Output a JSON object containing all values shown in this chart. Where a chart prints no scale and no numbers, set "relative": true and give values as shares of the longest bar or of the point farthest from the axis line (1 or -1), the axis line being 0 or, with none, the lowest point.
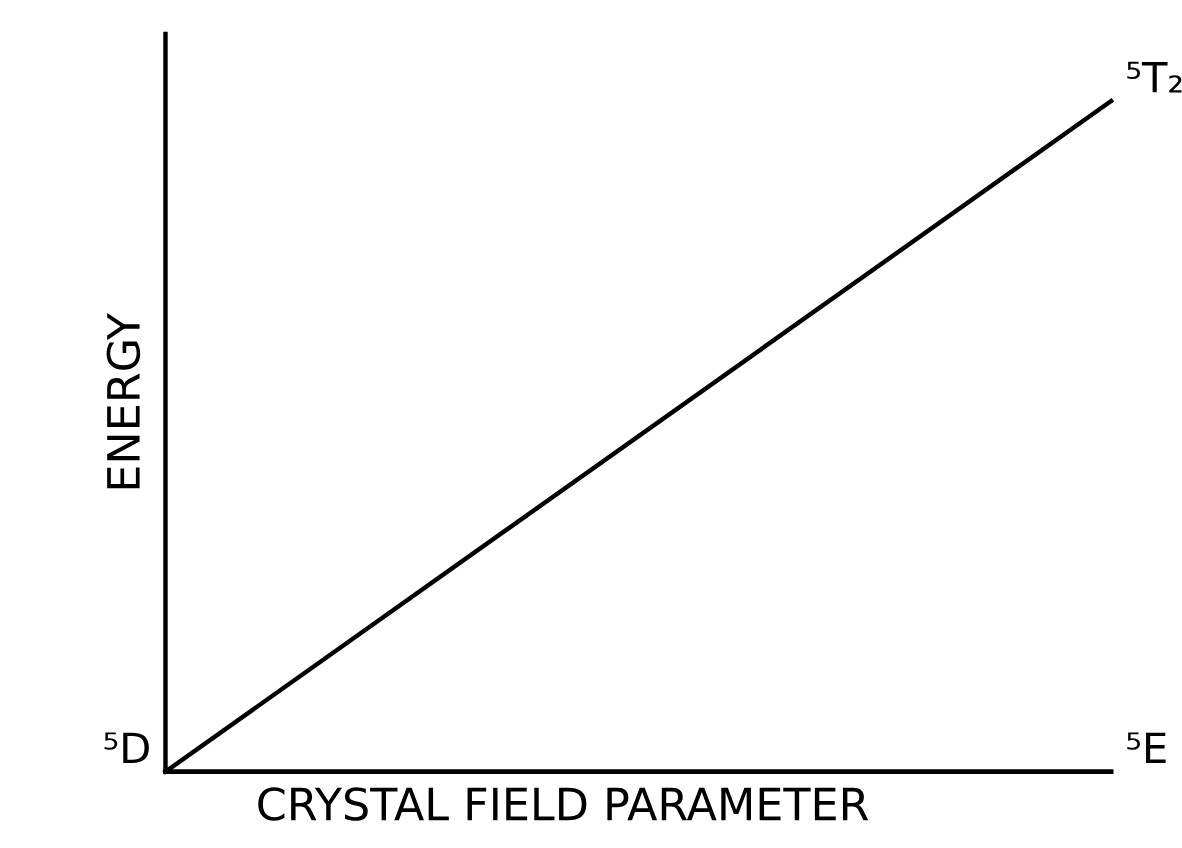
{
  "chart_data": {
    "type": "line",
    "relative": true,
    "xlabel": "CRYSTAL FIELD PARAMETER",
    "ylabel": "ENERGY",
    "categories": [
      null,
      null
    ],
    "series": [
      {
        "name": "⁵T₂",
        "color": "#000000",
        "values": [
          0,
          1
        ]
      },
      {
        "name": "⁵E",
        "color": "#000000",
        "values": [
          0,
          0
        ]
      }
    ],
    "annotations": [
      "⁵D"
    ],
    "legend": false,
    "marker": "none",
    "line_style": "solid"
  }
}
